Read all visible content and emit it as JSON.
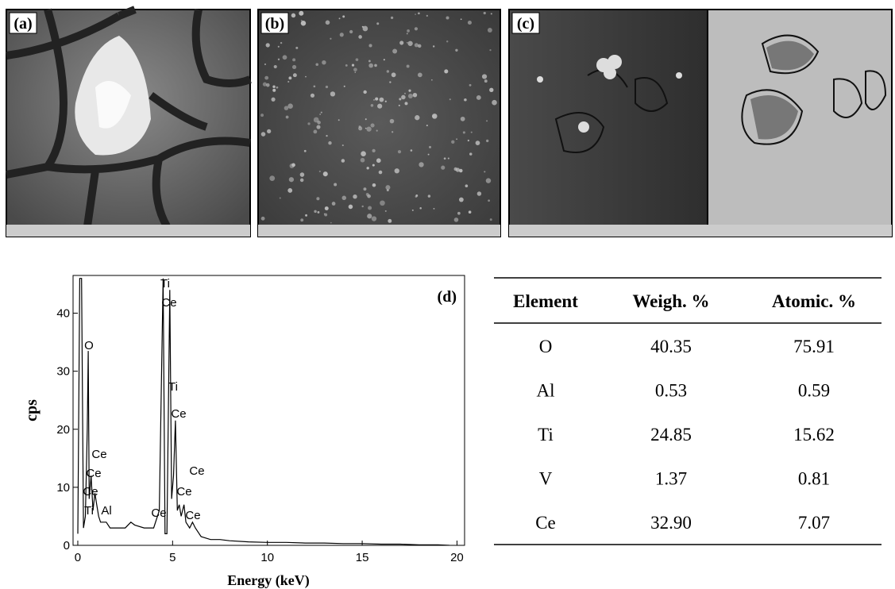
{
  "panels": {
    "a": "(a)",
    "b": "(b)",
    "c": "(c)",
    "d": "(d)"
  },
  "chart_data": {
    "type": "line",
    "xlabel": "Energy (keV)",
    "ylabel": "cps",
    "color": "#000000",
    "x": [
      0,
      0.1,
      0.2,
      0.3,
      0.4,
      0.5,
      0.55,
      0.6,
      0.7,
      0.8,
      0.9,
      1.0,
      1.1,
      1.2,
      1.4,
      1.5,
      1.7,
      2.0,
      2.5,
      2.8,
      3.0,
      3.5,
      4.0,
      4.3,
      4.5,
      4.6,
      4.7,
      4.85,
      4.95,
      5.05,
      5.15,
      5.25,
      5.35,
      5.45,
      5.6,
      5.7,
      5.9,
      6.05,
      6.2,
      6.5,
      7.0,
      7.5,
      8,
      9,
      10,
      11,
      12,
      13,
      14,
      15,
      16,
      17,
      18,
      19,
      19.6
    ],
    "values": [
      2,
      46,
      46,
      3,
      5,
      20,
      33.5,
      8,
      12,
      6,
      9,
      7,
      5,
      4,
      4,
      4,
      3,
      3,
      3,
      4,
      3.5,
      3,
      3,
      6,
      46,
      2,
      2,
      44,
      8,
      12,
      21.5,
      6,
      7,
      5,
      7,
      4,
      3,
      4,
      3,
      1.5,
      1,
      1,
      0.8,
      0.6,
      0.5,
      0.5,
      0.4,
      0.4,
      0.3,
      0.3,
      0.2,
      0.2,
      0.1,
      0.1,
      0
    ],
    "xlim": [
      -0.25,
      20.4
    ],
    "xticks": [
      0,
      5,
      10,
      15,
      20
    ],
    "ylim": [
      0,
      46.5
    ],
    "yticks": [
      0,
      10,
      20,
      30,
      40
    ],
    "annotations": [
      "Ti",
      "Ce",
      "O",
      "Ti",
      "Ce",
      "Ce",
      "Ce",
      "Ce",
      "Ce",
      "Ce",
      "Ti",
      "Al",
      "Ce",
      "Ce"
    ]
  },
  "table": {
    "header": [
      "Element",
      "Weigh. %",
      "Atomic. %"
    ],
    "rows": [
      [
        "O",
        "40.35",
        "75.91"
      ],
      [
        "Al",
        "0.53",
        "0.59"
      ],
      [
        "Ti",
        "24.85",
        "15.62"
      ],
      [
        "V",
        "1.37",
        "0.81"
      ],
      [
        "Ce",
        "32.90",
        "7.07"
      ]
    ]
  }
}
